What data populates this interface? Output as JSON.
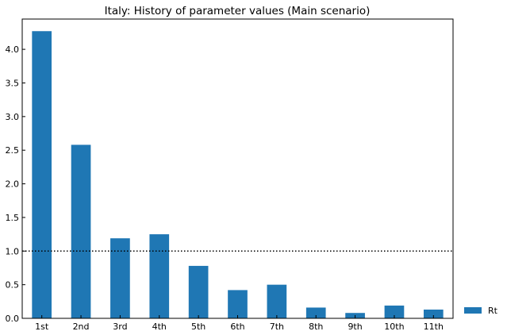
{
  "chart_data": {
    "type": "bar",
    "title": "Italy: History of parameter values (Main scenario)",
    "xlabel": "",
    "ylabel": "",
    "categories": [
      "1st",
      "2nd",
      "3rd",
      "4th",
      "5th",
      "6th",
      "7th",
      "8th",
      "9th",
      "10th",
      "11th"
    ],
    "series": [
      {
        "name": "Rt",
        "color": "#1f77b4",
        "values": [
          4.27,
          2.58,
          1.19,
          1.25,
          0.78,
          0.42,
          0.5,
          0.16,
          0.08,
          0.19,
          0.13
        ]
      }
    ],
    "ylim": [
      0,
      4.45
    ],
    "yticks": [
      "0.0",
      "0.5",
      "1.0",
      "1.5",
      "2.0",
      "2.5",
      "3.0",
      "3.5",
      "4.0"
    ],
    "reference_line": {
      "y": 1.0,
      "style": "dotted",
      "color": "#000000"
    },
    "grid": false,
    "legend_position": "lower-right-outside"
  }
}
